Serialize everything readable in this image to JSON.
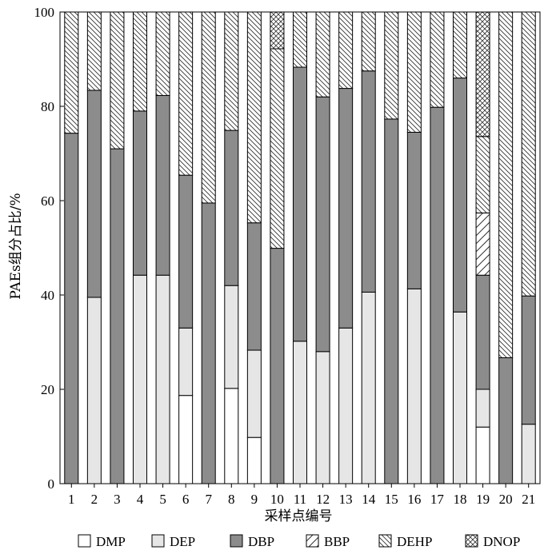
{
  "chart_data": {
    "type": "bar",
    "stacked": true,
    "title": "",
    "xlabel": "采样点编号",
    "ylabel": "PAEs组分占比/%",
    "ylim": [
      0,
      100
    ],
    "yticks": [
      "0",
      "20",
      "40",
      "60",
      "80",
      "100"
    ],
    "categories": [
      "1",
      "2",
      "3",
      "4",
      "5",
      "6",
      "7",
      "8",
      "9",
      "10",
      "11",
      "12",
      "13",
      "14",
      "15",
      "16",
      "17",
      "18",
      "19",
      "20",
      "21"
    ],
    "legend_position": "bottom",
    "series": [
      {
        "name": "DMP",
        "pattern": "solid-white",
        "values": [
          0,
          0,
          0,
          0,
          0,
          18.7,
          0,
          20.2,
          9.8,
          0,
          0,
          0,
          0,
          0,
          0,
          0,
          0,
          0,
          12,
          0,
          0
        ]
      },
      {
        "name": "DEP",
        "pattern": "solid-light",
        "values": [
          0,
          39.5,
          0,
          44.2,
          44.2,
          14.3,
          0,
          21.8,
          18.5,
          0,
          30.2,
          28,
          33,
          40.6,
          0,
          41.3,
          0,
          36.4,
          8,
          0,
          12.6
        ]
      },
      {
        "name": "DBP",
        "pattern": "solid-dark",
        "values": [
          74.3,
          43.9,
          71,
          34.8,
          38.1,
          32.4,
          59.5,
          32.9,
          27,
          49.9,
          58.1,
          54,
          50.8,
          46.9,
          77.3,
          33.2,
          79.8,
          49.6,
          24.2,
          26.7,
          27.2
        ]
      },
      {
        "name": "BBP",
        "pattern": "hatch-sparse",
        "values": [
          0,
          0,
          0,
          0,
          0,
          0,
          0,
          0,
          0,
          0,
          0,
          0,
          0,
          0,
          0,
          0,
          0,
          0,
          13.2,
          0,
          0
        ]
      },
      {
        "name": "DEHP",
        "pattern": "hatch-dense",
        "values": [
          25.7,
          16.6,
          29,
          21,
          17.7,
          34.6,
          40.5,
          25.1,
          44.7,
          42.3,
          11.7,
          18,
          16.2,
          12.5,
          22.7,
          25.5,
          20.2,
          14,
          16.2,
          73.3,
          60.2
        ]
      },
      {
        "name": "DNOP",
        "pattern": "crosshatch",
        "values": [
          0,
          0,
          0,
          0,
          0,
          0,
          0,
          0,
          0,
          7.8,
          0,
          0,
          0,
          0,
          0,
          0,
          0,
          0,
          26.4,
          0,
          0
        ]
      }
    ]
  }
}
